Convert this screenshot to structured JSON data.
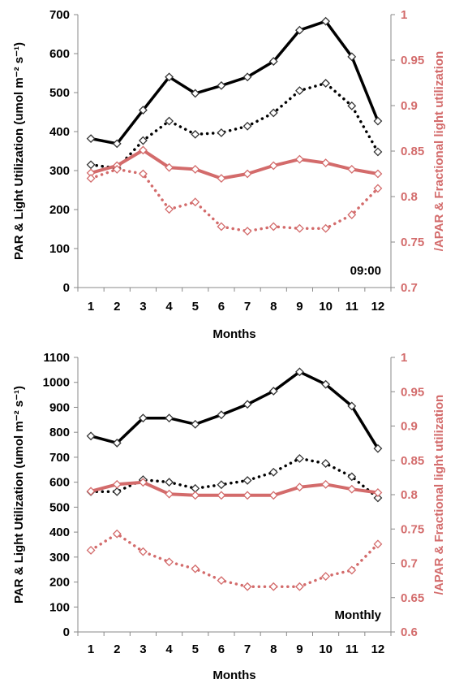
{
  "chart_data": [
    {
      "type": "line",
      "annotation": "09:00",
      "xlabel": "Months",
      "ylabel_left": "PAR & Light Utilization (umol m⁻² s⁻¹)",
      "ylabel_right": "/APAR & Fractional light utilization",
      "categories": [
        "1",
        "2",
        "3",
        "4",
        "5",
        "6",
        "7",
        "8",
        "9",
        "10",
        "11",
        "12"
      ],
      "ylim_left": [
        0,
        700
      ],
      "yticks_left": [
        "0",
        "100",
        "200",
        "300",
        "400",
        "500",
        "600",
        "700"
      ],
      "ylim_right": [
        0.7,
        1
      ],
      "yticks_right": [
        "0.7",
        "0.75",
        "0.8",
        "0.85",
        "0.9",
        "0.95",
        "1"
      ],
      "series": [
        {
          "axis": "left",
          "style": "solid",
          "color": "#000000",
          "values": [
            382,
            369,
            455,
            540,
            498,
            518,
            540,
            580,
            660,
            683,
            592,
            427
          ]
        },
        {
          "axis": "left",
          "style": "dotted",
          "color": "#000000",
          "values": [
            315,
            306,
            377,
            427,
            393,
            397,
            414,
            448,
            505,
            524,
            466,
            348
          ]
        },
        {
          "axis": "right",
          "style": "solid",
          "color": "#d36b6b",
          "values": [
            0.826,
            0.834,
            0.851,
            0.832,
            0.83,
            0.82,
            0.825,
            0.834,
            0.841,
            0.837,
            0.83,
            0.825
          ]
        },
        {
          "axis": "right",
          "style": "dotted",
          "color": "#d36b6b",
          "values": [
            0.82,
            0.83,
            0.825,
            0.786,
            0.794,
            0.767,
            0.762,
            0.767,
            0.765,
            0.765,
            0.78,
            0.809
          ]
        }
      ]
    },
    {
      "type": "line",
      "annotation": "Monthly",
      "xlabel": "Months",
      "ylabel_left": "PAR & Light Utilization (umol m⁻² s⁻¹)",
      "ylabel_right": "/APAR & Fractional light utilization",
      "categories": [
        "1",
        "2",
        "3",
        "4",
        "5",
        "6",
        "7",
        "8",
        "9",
        "10",
        "11",
        "12"
      ],
      "ylim_left": [
        0,
        1100
      ],
      "yticks_left": [
        "0",
        "100",
        "200",
        "300",
        "400",
        "500",
        "600",
        "700",
        "800",
        "900",
        "1000",
        "1100"
      ],
      "ylim_right": [
        0.6,
        1
      ],
      "yticks_right": [
        "0.6",
        "0.65",
        "0.7",
        "0.75",
        "0.8",
        "0.85",
        "0.9",
        "0.95",
        "1"
      ],
      "series": [
        {
          "axis": "left",
          "style": "solid",
          "color": "#000000",
          "values": [
            785,
            757,
            857,
            857,
            832,
            870,
            912,
            965,
            1042,
            992,
            905,
            735
          ]
        },
        {
          "axis": "left",
          "style": "dotted",
          "color": "#000000",
          "values": [
            562,
            562,
            610,
            600,
            575,
            590,
            607,
            640,
            695,
            675,
            622,
            537
          ]
        },
        {
          "axis": "right",
          "style": "solid",
          "color": "#d36b6b",
          "values": [
            0.805,
            0.815,
            0.818,
            0.801,
            0.799,
            0.799,
            0.799,
            0.799,
            0.811,
            0.815,
            0.808,
            0.803
          ]
        },
        {
          "axis": "right",
          "style": "dotted",
          "color": "#d36b6b",
          "values": [
            0.719,
            0.743,
            0.717,
            0.702,
            0.692,
            0.675,
            0.666,
            0.666,
            0.666,
            0.681,
            0.69,
            0.728
          ]
        }
      ]
    }
  ]
}
